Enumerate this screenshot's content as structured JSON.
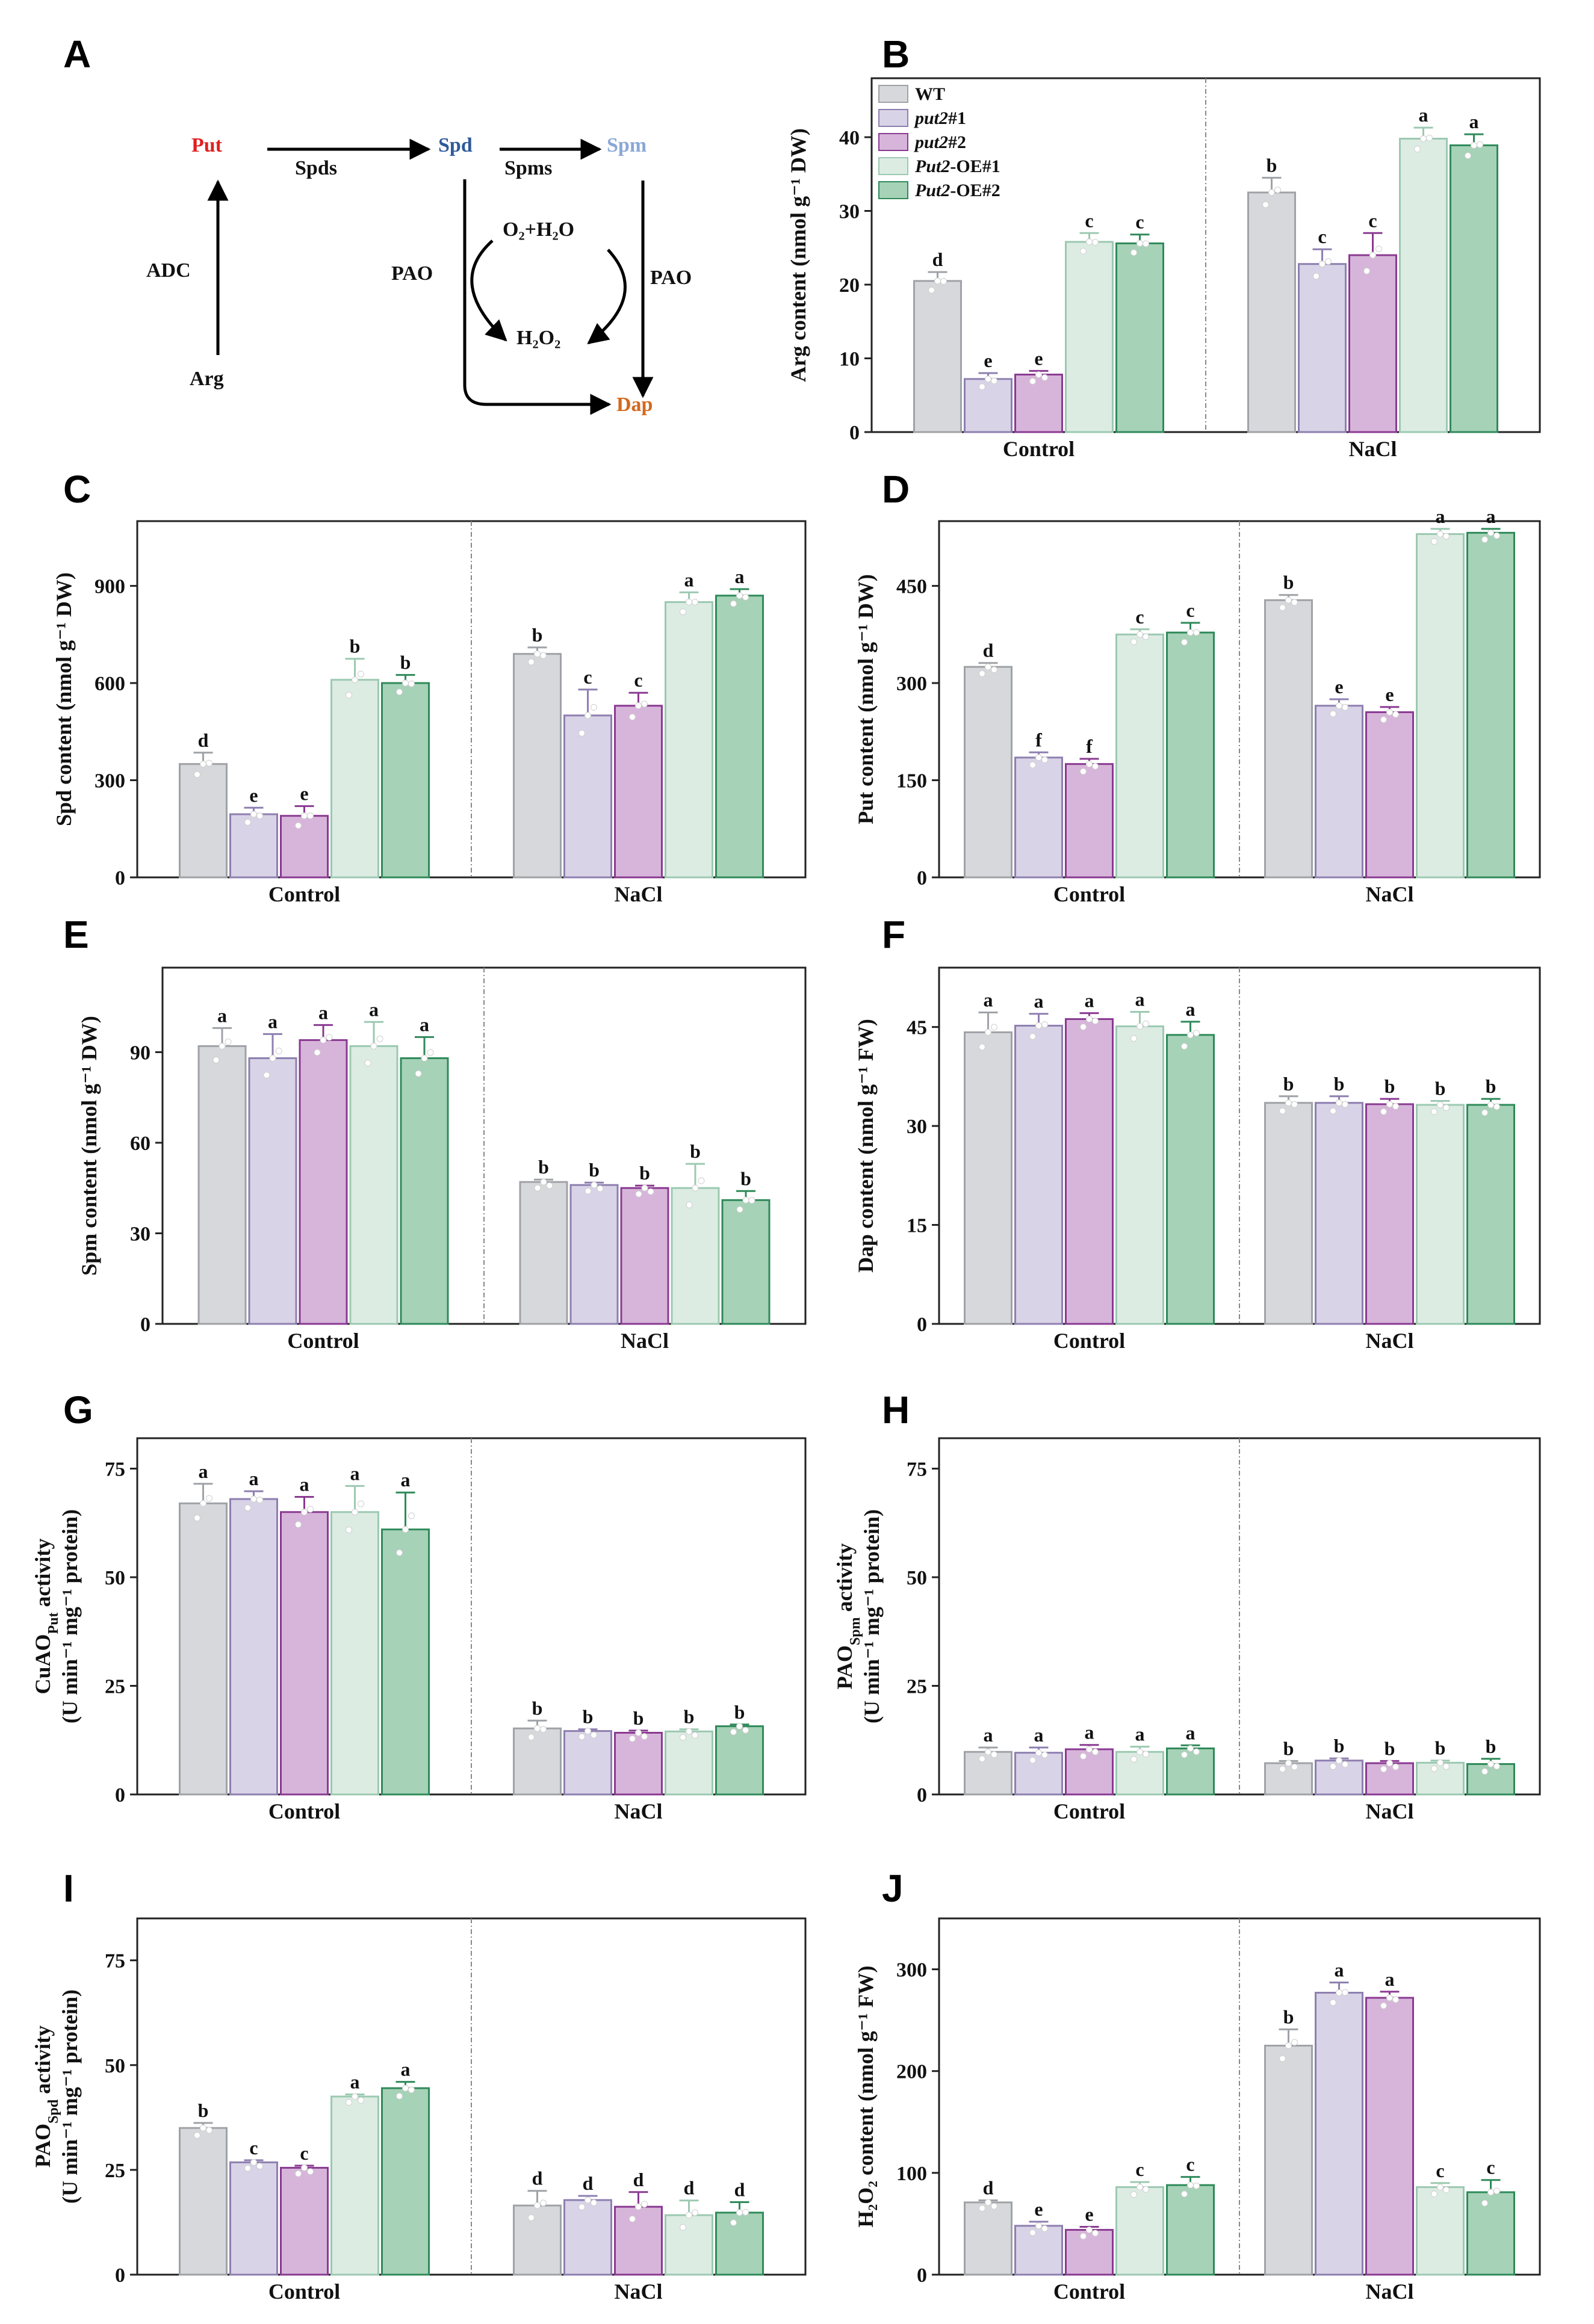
{
  "series": [
    {
      "name": "WT",
      "italic_part": "",
      "rest": "WT",
      "fill": "#d6d8db",
      "stroke": "#9fa2a6"
    },
    {
      "name": "put2#1",
      "italic_part": "put2",
      "rest": "#1",
      "fill": "#d8d3e6",
      "stroke": "#8e7fb0"
    },
    {
      "name": "put2#2",
      "italic_part": "put2",
      "rest": "#2",
      "fill": "#d7b5da",
      "stroke": "#8a3a92"
    },
    {
      "name": "Put2-OE#1",
      "italic_part": "Put2",
      "rest": "-OE#1",
      "fill": "#dcece3",
      "stroke": "#9cc9b1"
    },
    {
      "name": "Put2-OE#2",
      "italic_part": "Put2",
      "rest": "-OE#2",
      "fill": "#a6d2b7",
      "stroke": "#2f8a5a"
    }
  ],
  "pathway": {
    "letter": "A",
    "nodes": {
      "put": "Put",
      "spd": "Spd",
      "spm": "Spm",
      "arg": "Arg",
      "dap": "Dap",
      "h2o2": "H₂O₂",
      "o2h2o": "O₂+H₂O"
    },
    "enzymes": {
      "spds": "Spds",
      "spms": "Spms",
      "adc": "ADC",
      "pao_left": "PAO",
      "pao_right": "PAO"
    },
    "colors": {
      "put": "#e02020",
      "spd": "#2e5b9a",
      "spm": "#8aa8d8",
      "dap": "#d2691e"
    }
  },
  "chart_data": [
    {
      "letter": "B",
      "type": "bar",
      "ylabel": "Arg content (nmol g⁻¹ DW)",
      "ylim": [
        0,
        48
      ],
      "yticks": [
        0,
        10,
        20,
        30,
        40
      ],
      "categories": [
        "Control",
        "NaCl"
      ],
      "values": [
        [
          20.5,
          7.2,
          7.8,
          25.8,
          25.6
        ],
        [
          32.5,
          22.8,
          24.0,
          39.8,
          38.9
        ]
      ],
      "errors": [
        [
          1.2,
          0.8,
          0.5,
          1.2,
          1.2
        ],
        [
          2.0,
          2.0,
          3.0,
          1.5,
          1.5
        ]
      ],
      "letters": [
        [
          "d",
          "e",
          "e",
          "c",
          "c"
        ],
        [
          "b",
          "c",
          "c",
          "a",
          "a"
        ]
      ],
      "show_legend": true
    },
    {
      "letter": "C",
      "type": "bar",
      "ylabel": "Spd content (nmol g⁻¹ DW)",
      "ylim": [
        0,
        1100
      ],
      "yticks": [
        0,
        300,
        600,
        900
      ],
      "categories": [
        "Control",
        "NaCl"
      ],
      "values": [
        [
          350,
          195,
          190,
          610,
          600
        ],
        [
          690,
          500,
          530,
          850,
          870
        ]
      ],
      "errors": [
        [
          35,
          20,
          30,
          65,
          25
        ],
        [
          20,
          80,
          40,
          30,
          20
        ]
      ],
      "letters": [
        [
          "d",
          "e",
          "e",
          "b",
          "b"
        ],
        [
          "b",
          "c",
          "c",
          "a",
          "a"
        ]
      ],
      "show_legend": false
    },
    {
      "letter": "D",
      "type": "bar",
      "ylabel": "Put content (nmol g⁻¹ DW)",
      "ylim": [
        0,
        550
      ],
      "yticks": [
        0,
        150,
        300,
        450
      ],
      "categories": [
        "Control",
        "NaCl"
      ],
      "values": [
        [
          325,
          185,
          175,
          375,
          378
        ],
        [
          428,
          265,
          255,
          530,
          532
        ]
      ],
      "errors": [
        [
          6,
          8,
          8,
          8,
          15
        ],
        [
          8,
          10,
          8,
          8,
          6
        ]
      ],
      "letters": [
        [
          "d",
          "f",
          "f",
          "c",
          "c"
        ],
        [
          "b",
          "e",
          "e",
          "a",
          "a"
        ]
      ],
      "show_legend": false
    },
    {
      "letter": "E",
      "type": "bar",
      "ylabel": "Spm content (nmol g⁻¹ DW)",
      "ylim": [
        0,
        118
      ],
      "yticks": [
        0,
        30,
        60,
        90
      ],
      "categories": [
        "Control",
        "NaCl"
      ],
      "values": [
        [
          92,
          88,
          94,
          92,
          88
        ],
        [
          47,
          46,
          45,
          45,
          41
        ]
      ],
      "errors": [
        [
          6,
          8,
          5,
          8,
          7
        ],
        [
          0.8,
          0.8,
          0.8,
          8,
          3
        ]
      ],
      "letters": [
        [
          "a",
          "a",
          "a",
          "a",
          "a"
        ],
        [
          "b",
          "b",
          "b",
          "b",
          "b"
        ]
      ],
      "show_legend": false
    },
    {
      "letter": "F",
      "type": "bar",
      "ylabel": "Dap content (nmol g⁻¹ FW)",
      "ylim": [
        0,
        54
      ],
      "yticks": [
        0,
        15,
        30,
        45
      ],
      "categories": [
        "Control",
        "NaCl"
      ],
      "values": [
        [
          44.2,
          45.2,
          46.2,
          45.1,
          43.8
        ],
        [
          33.5,
          33.5,
          33.3,
          33.2,
          33.2
        ]
      ],
      "errors": [
        [
          3.0,
          1.8,
          0.9,
          2.2,
          2.0
        ],
        [
          1.0,
          1.0,
          0.8,
          0.6,
          0.9
        ]
      ],
      "letters": [
        [
          "a",
          "a",
          "a",
          "a",
          "a"
        ],
        [
          "b",
          "b",
          "b",
          "b",
          "b"
        ]
      ],
      "show_legend": false
    },
    {
      "letter": "G",
      "type": "bar",
      "ylabel": "CuAO_Put activity",
      "ylabel2": "(U min⁻¹ mg⁻¹ protein)",
      "ylim": [
        0,
        82
      ],
      "yticks": [
        0,
        25,
        50,
        75
      ],
      "categories": [
        "Control",
        "NaCl"
      ],
      "values": [
        [
          67,
          68,
          65,
          65,
          61
        ],
        [
          15.2,
          14.6,
          14.2,
          14.5,
          15.7
        ]
      ],
      "errors": [
        [
          4.5,
          1.8,
          3.5,
          6,
          8.5
        ],
        [
          1.8,
          0.4,
          0.5,
          0.5,
          0.4
        ]
      ],
      "letters": [
        [
          "a",
          "a",
          "a",
          "a",
          "a"
        ],
        [
          "b",
          "b",
          "b",
          "b",
          "b"
        ]
      ],
      "show_legend": false
    },
    {
      "letter": "H",
      "type": "bar",
      "ylabel": "PAO_Spm activity",
      "ylabel2": "(U min⁻¹ mg⁻¹ protein)",
      "ylim": [
        0,
        82
      ],
      "yticks": [
        0,
        25,
        50,
        75
      ],
      "categories": [
        "Control",
        "NaCl"
      ],
      "values": [
        [
          9.8,
          9.6,
          10.4,
          9.8,
          10.6
        ],
        [
          7.2,
          7.8,
          7.2,
          7.3,
          7.0
        ]
      ],
      "errors": [
        [
          1.0,
          1.2,
          1.0,
          1.2,
          0.7
        ],
        [
          0.5,
          0.5,
          0.5,
          0.5,
          1.2
        ]
      ],
      "letters": [
        [
          "a",
          "a",
          "a",
          "a",
          "a"
        ],
        [
          "b",
          "b",
          "b",
          "b",
          "b"
        ]
      ],
      "show_legend": false
    },
    {
      "letter": "I",
      "type": "bar",
      "ylabel": "PAO_Spd activity",
      "ylabel2": "(U min⁻¹ mg⁻¹ protein)",
      "ylim": [
        0,
        85
      ],
      "yticks": [
        0,
        25,
        50,
        75
      ],
      "categories": [
        "Control",
        "NaCl"
      ],
      "values": [
        [
          35,
          26.8,
          25.5,
          42.5,
          44.5
        ],
        [
          16.5,
          17.8,
          16.2,
          14.2,
          14.8
        ]
      ],
      "errors": [
        [
          1.2,
          0.5,
          0.5,
          0.5,
          1.5
        ],
        [
          3.5,
          1.0,
          3.5,
          3.5,
          2.5
        ]
      ],
      "letters": [
        [
          "b",
          "c",
          "c",
          "a",
          "a"
        ],
        [
          "d",
          "d",
          "d",
          "d",
          "d"
        ]
      ],
      "show_legend": false
    },
    {
      "letter": "J",
      "type": "bar",
      "ylabel": "H₂O₂ content (nmol g⁻¹ FW)",
      "ylim": [
        0,
        350
      ],
      "yticks": [
        0,
        100,
        200,
        300
      ],
      "categories": [
        "Control",
        "NaCl"
      ],
      "values": [
        [
          71,
          48,
          44,
          86,
          88
        ],
        [
          225,
          277,
          272,
          86,
          81
        ]
      ],
      "errors": [
        [
          2,
          4,
          3,
          5,
          8
        ],
        [
          16,
          10,
          6,
          4,
          12
        ]
      ],
      "letters": [
        [
          "d",
          "e",
          "e",
          "c",
          "c"
        ],
        [
          "b",
          "a",
          "a",
          "c",
          "c"
        ]
      ],
      "show_legend": false
    }
  ]
}
